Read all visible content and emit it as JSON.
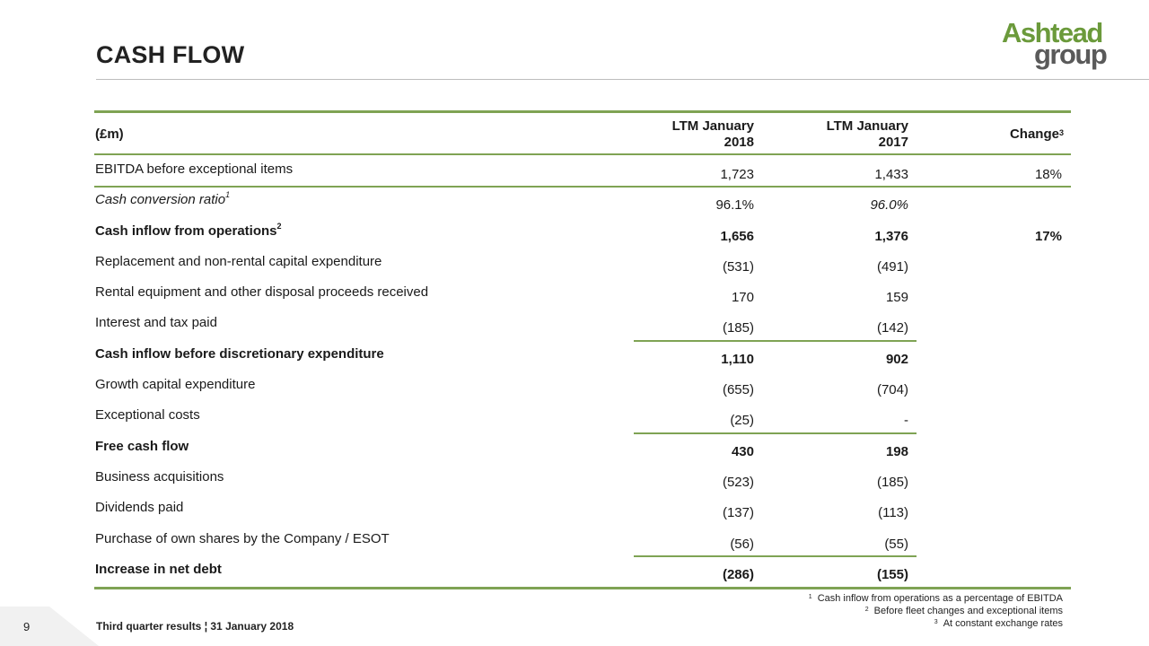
{
  "title": "CASH FLOW",
  "logo": {
    "line1": "Ashtead",
    "line2": "group",
    "brand_green": "#6b9a3b",
    "brand_grey": "#5a5a5a"
  },
  "accent_color": "#7fa354",
  "table": {
    "header": {
      "unit": "(£m)",
      "col1_line1": "LTM January",
      "col1_line2": "2018",
      "col2_line1": "LTM January",
      "col2_line2": "2017",
      "col3": "Change",
      "col3_sup": "3"
    },
    "rows": [
      {
        "label": "EBITDA before exceptional items",
        "sup": "",
        "v1": "1,723",
        "v2": "1,433",
        "change": "18%"
      },
      {
        "label": "Cash conversion ratio",
        "sup": "1",
        "v1": "96.1%",
        "v2": "96.0%",
        "change": ""
      },
      {
        "label": "Cash inflow from operations",
        "sup": "2",
        "v1": "1,656",
        "v2": "1,376",
        "change": "17%"
      },
      {
        "label": "Replacement and non-rental capital expenditure",
        "sup": "",
        "v1": "(531)",
        "v2": "(491)",
        "change": ""
      },
      {
        "label": "Rental equipment and other disposal proceeds received",
        "sup": "",
        "v1": "170",
        "v2": "159",
        "change": ""
      },
      {
        "label": "Interest and tax paid",
        "sup": "",
        "v1": "(185)",
        "v2": "(142)",
        "change": ""
      },
      {
        "label": "Cash inflow before discretionary expenditure",
        "sup": "",
        "v1": "1,110",
        "v2": "902",
        "change": ""
      },
      {
        "label": "Growth capital expenditure",
        "sup": "",
        "v1": "(655)",
        "v2": "(704)",
        "change": ""
      },
      {
        "label": "Exceptional costs",
        "sup": "",
        "v1": "(25)",
        "v2": "-",
        "change": ""
      },
      {
        "label": "Free cash flow",
        "sup": "",
        "v1": "430",
        "v2": "198",
        "change": ""
      },
      {
        "label": "Business acquisitions",
        "sup": "",
        "v1": "(523)",
        "v2": "(185)",
        "change": ""
      },
      {
        "label": "Dividends paid",
        "sup": "",
        "v1": "(137)",
        "v2": "(113)",
        "change": ""
      },
      {
        "label": "Purchase of own shares by the Company / ESOT",
        "sup": "",
        "v1": "(56)",
        "v2": "(55)",
        "change": ""
      },
      {
        "label": "Increase in net debt",
        "sup": "",
        "v1": "(286)",
        "v2": "(155)",
        "change": ""
      }
    ]
  },
  "footnotes": [
    {
      "num": "1",
      "text": "Cash inflow from operations as a percentage of EBITDA"
    },
    {
      "num": "2",
      "text": "Before fleet changes and exceptional items"
    },
    {
      "num": "3",
      "text": "At constant exchange rates"
    }
  ],
  "page_number": "9",
  "footer": "Third quarter results ¦ 31 January 2018"
}
